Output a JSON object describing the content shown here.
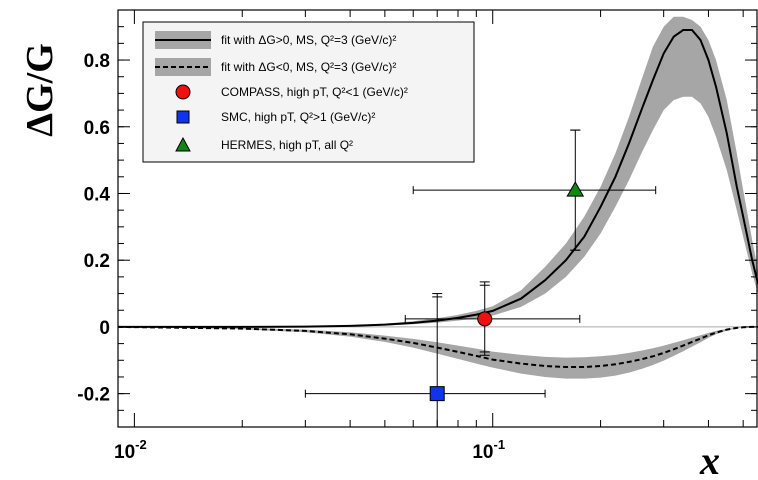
{
  "chart_data": {
    "type": "line",
    "title": "",
    "xlabel": "x",
    "ylabel": "ΔG/G",
    "xscale": "log",
    "xlim": [
      0.009,
      0.55
    ],
    "ylim": [
      -0.3,
      0.95
    ],
    "x_ticks": [
      {
        "value": 0.01,
        "base": "10",
        "exp": "-2"
      },
      {
        "value": 0.1,
        "base": "10",
        "exp": "-1"
      }
    ],
    "y_ticks": [
      {
        "value": -0.2,
        "label": "-0.2"
      },
      {
        "value": 0,
        "label": "0"
      },
      {
        "value": 0.2,
        "label": "0.2"
      },
      {
        "value": 0.4,
        "label": "0.4"
      },
      {
        "value": 0.6,
        "label": "0.6"
      },
      {
        "value": 0.8,
        "label": "0.8"
      }
    ],
    "legend_position": "top-left",
    "legend": [
      {
        "marker": "line-band",
        "text": "fit with ΔG>0, MS, Q²=3 (GeV/c)²"
      },
      {
        "marker": "dashed-band",
        "text": "fit with ΔG<0, MS, Q²=3 (GeV/c)²"
      },
      {
        "marker": "circle",
        "color": "#ee1111",
        "text": "COMPASS, high pT, Q²<1 (GeV/c)²"
      },
      {
        "marker": "square",
        "color": "#1133ee",
        "text": "SMC, high pT, Q²>1 (GeV/c)²"
      },
      {
        "marker": "triangle",
        "color": "#118811",
        "text": "HERMES, high pT, all Q²"
      }
    ],
    "series": [
      {
        "style": "solid",
        "x": [
          0.009,
          0.02,
          0.03,
          0.04,
          0.05,
          0.06,
          0.07,
          0.08,
          0.09,
          0.1,
          0.12,
          0.14,
          0.16,
          0.18,
          0.2,
          0.22,
          0.24,
          0.26,
          0.28,
          0.3,
          0.32,
          0.34,
          0.36,
          0.38,
          0.4,
          0.42,
          0.45,
          0.48,
          0.5,
          0.53,
          0.55
        ],
        "y": [
          0.0,
          0.0,
          0.001,
          0.003,
          0.007,
          0.012,
          0.019,
          0.027,
          0.037,
          0.048,
          0.085,
          0.14,
          0.2,
          0.27,
          0.36,
          0.45,
          0.55,
          0.65,
          0.74,
          0.82,
          0.87,
          0.89,
          0.89,
          0.86,
          0.8,
          0.72,
          0.58,
          0.42,
          0.33,
          0.2,
          0.13
        ],
        "band_low": [
          0.0,
          0.0,
          0.0,
          0.002,
          0.004,
          0.008,
          0.013,
          0.019,
          0.026,
          0.034,
          0.06,
          0.1,
          0.15,
          0.21,
          0.28,
          0.36,
          0.44,
          0.52,
          0.59,
          0.65,
          0.68,
          0.69,
          0.69,
          0.67,
          0.63,
          0.57,
          0.47,
          0.35,
          0.27,
          0.16,
          0.1
        ],
        "band_high": [
          0.0,
          0.0,
          0.002,
          0.004,
          0.01,
          0.017,
          0.026,
          0.036,
          0.048,
          0.062,
          0.11,
          0.18,
          0.25,
          0.33,
          0.42,
          0.52,
          0.63,
          0.74,
          0.84,
          0.9,
          0.93,
          0.93,
          0.92,
          0.9,
          0.86,
          0.8,
          0.68,
          0.52,
          0.41,
          0.26,
          0.17
        ]
      },
      {
        "style": "dashed",
        "x": [
          0.009,
          0.02,
          0.03,
          0.04,
          0.05,
          0.06,
          0.07,
          0.08,
          0.09,
          0.1,
          0.12,
          0.14,
          0.16,
          0.18,
          0.2,
          0.22,
          0.24,
          0.26,
          0.28,
          0.3,
          0.32,
          0.34,
          0.36,
          0.38,
          0.4,
          0.42,
          0.45,
          0.48,
          0.5,
          0.53,
          0.55
        ],
        "y": [
          0.0,
          -0.005,
          -0.012,
          -0.022,
          -0.035,
          -0.048,
          -0.062,
          -0.075,
          -0.087,
          -0.098,
          -0.11,
          -0.117,
          -0.12,
          -0.12,
          -0.117,
          -0.112,
          -0.105,
          -0.097,
          -0.088,
          -0.078,
          -0.067,
          -0.056,
          -0.045,
          -0.035,
          -0.025,
          -0.017,
          -0.008,
          -0.003,
          -0.001,
          0.0,
          0.0
        ],
        "band_low": [
          0.0,
          -0.007,
          -0.016,
          -0.029,
          -0.045,
          -0.062,
          -0.08,
          -0.096,
          -0.11,
          -0.122,
          -0.14,
          -0.15,
          -0.155,
          -0.155,
          -0.152,
          -0.146,
          -0.137,
          -0.126,
          -0.114,
          -0.101,
          -0.087,
          -0.073,
          -0.059,
          -0.046,
          -0.033,
          -0.022,
          -0.011,
          -0.004,
          -0.002,
          0.0,
          0.0
        ],
        "band_high": [
          0.0,
          -0.003,
          -0.008,
          -0.016,
          -0.026,
          -0.036,
          -0.046,
          -0.056,
          -0.065,
          -0.074,
          -0.084,
          -0.09,
          -0.092,
          -0.091,
          -0.088,
          -0.084,
          -0.078,
          -0.071,
          -0.064,
          -0.056,
          -0.048,
          -0.04,
          -0.032,
          -0.025,
          -0.018,
          -0.012,
          -0.006,
          -0.002,
          -0.001,
          0.0,
          0.0
        ]
      }
    ],
    "points": [
      {
        "name": "COMPASS",
        "marker": "circle",
        "color": "#ee1111",
        "x": 0.095,
        "y": 0.024,
        "x_low": 0.057,
        "x_high": 0.175,
        "y_low": -0.085,
        "y_high": 0.135,
        "y_low_sys": -0.075,
        "y_high_sys": 0.125
      },
      {
        "name": "SMC",
        "marker": "square",
        "color": "#1133ee",
        "x": 0.07,
        "y": -0.2,
        "x_low": 0.03,
        "x_high": 0.14,
        "y_low": -0.5,
        "y_high": 0.1,
        "y_low_sys": -0.5,
        "y_high_sys": 0.09
      },
      {
        "name": "HERMES",
        "marker": "triangle",
        "color": "#118811",
        "x": 0.17,
        "y": 0.41,
        "x_low": 0.06,
        "x_high": 0.285,
        "y_low": 0.23,
        "y_high": 0.59,
        "y_low_sys": 0.23,
        "y_high_sys": 0.59
      }
    ]
  }
}
